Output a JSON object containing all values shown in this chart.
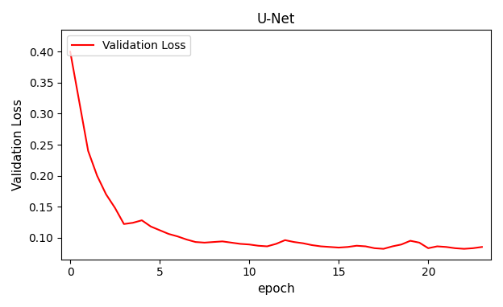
{
  "title": "U-Net",
  "xlabel": "epoch",
  "ylabel": "Validation Loss",
  "legend_label": "Validation Loss",
  "line_color": "#ff0000",
  "xlim": [
    -0.5,
    23.5
  ],
  "ylim": [
    0.065,
    0.435
  ],
  "yticks": [
    0.1,
    0.15,
    0.2,
    0.25,
    0.3,
    0.35,
    0.4
  ],
  "xticks": [
    0,
    5,
    10,
    15,
    20
  ],
  "epochs": [
    0,
    0.5,
    1,
    1.5,
    2,
    2.5,
    3,
    3.5,
    4,
    4.5,
    5,
    5.5,
    6,
    6.5,
    7,
    7.5,
    8,
    8.5,
    9,
    9.5,
    10,
    10.5,
    11,
    11.5,
    12,
    12.5,
    13,
    13.5,
    14,
    14.5,
    15,
    15.5,
    16,
    16.5,
    17,
    17.5,
    18,
    18.5,
    19,
    19.5,
    20,
    20.5,
    21,
    21.5,
    22,
    22.5,
    23
  ],
  "val_loss": [
    0.4,
    0.32,
    0.24,
    0.2,
    0.17,
    0.148,
    0.122,
    0.124,
    0.128,
    0.118,
    0.112,
    0.106,
    0.102,
    0.097,
    0.093,
    0.092,
    0.093,
    0.094,
    0.092,
    0.09,
    0.089,
    0.087,
    0.086,
    0.09,
    0.096,
    0.093,
    0.091,
    0.088,
    0.086,
    0.085,
    0.084,
    0.085,
    0.087,
    0.086,
    0.083,
    0.082,
    0.086,
    0.089,
    0.095,
    0.092,
    0.083,
    0.086,
    0.085,
    0.083,
    0.082,
    0.083,
    0.085
  ]
}
